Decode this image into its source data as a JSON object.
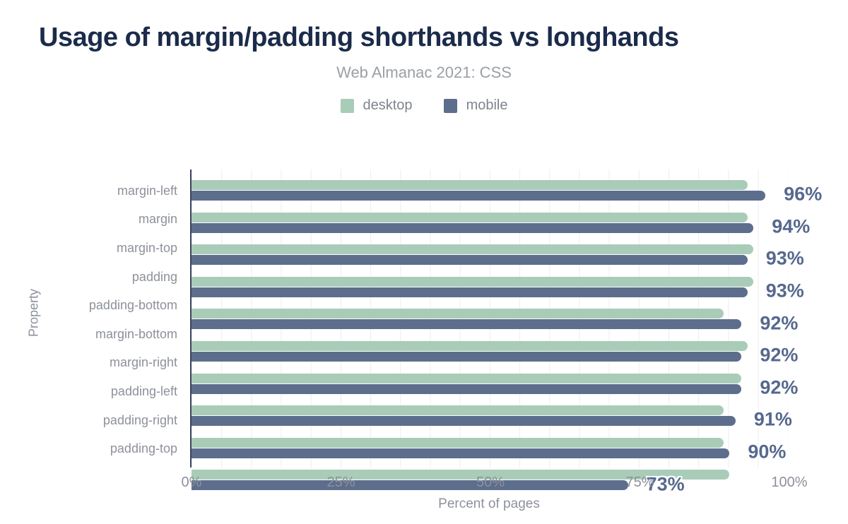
{
  "header": {
    "title": "Usage of margin/padding shorthands vs longhands",
    "subtitle": "Web Almanac 2021: CSS"
  },
  "legend": [
    {
      "label": "desktop",
      "color": "#a9ccb8"
    },
    {
      "label": "mobile",
      "color": "#5d6e8d"
    }
  ],
  "colors": {
    "title": "#1b2b4a",
    "axis_line": "#3b455c",
    "gridline": "#ededed",
    "tick_text": "#8d919b",
    "value_label": "#56688e",
    "desktop_bar": "#a9ccb8",
    "mobile_bar": "#5d6e8d"
  },
  "chart_data": {
    "type": "bar",
    "orientation": "horizontal",
    "title": "Usage of margin/padding shorthands vs longhands",
    "subtitle": "Web Almanac 2021: CSS",
    "xlabel": "Percent of pages",
    "ylabel": "Property",
    "xlim": [
      0,
      100
    ],
    "grid": true,
    "grid_step_percent": 5,
    "legend_position": "top",
    "categories": [
      "margin-left",
      "margin",
      "margin-top",
      "padding",
      "padding-bottom",
      "margin-bottom",
      "margin-right",
      "padding-left",
      "padding-right",
      "padding-top"
    ],
    "series": [
      {
        "name": "desktop",
        "color": "#a9ccb8",
        "values": [
          93,
          93,
          94,
          94,
          89,
          93,
          92,
          89,
          89,
          90
        ]
      },
      {
        "name": "mobile",
        "color": "#5d6e8d",
        "values": [
          96,
          94,
          93,
          93,
          92,
          92,
          92,
          91,
          90,
          73
        ]
      }
    ],
    "value_labels": [
      "96%",
      "94%",
      "93%",
      "93%",
      "92%",
      "92%",
      "92%",
      "91%",
      "90%",
      "73%"
    ],
    "value_labels_series": "mobile",
    "xticks": [
      {
        "value": 0,
        "label": "0%"
      },
      {
        "value": 25,
        "label": "25%"
      },
      {
        "value": 50,
        "label": "50%"
      },
      {
        "value": 75,
        "label": "75%"
      },
      {
        "value": 100,
        "label": "100%"
      }
    ]
  }
}
